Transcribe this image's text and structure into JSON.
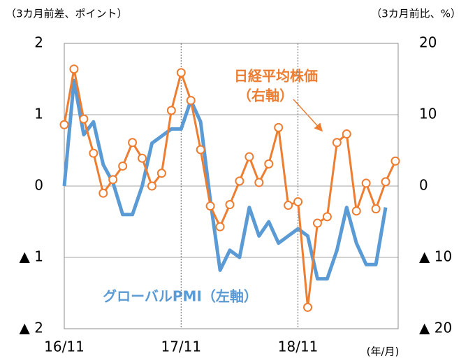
{
  "chart_data": {
    "type": "line",
    "y_label": "（3カ月前差、ポイント）",
    "y2_label": "（3カ月前比、%）",
    "x_label": "(年/月)",
    "annotations": [
      "日経平均株価",
      "（右軸）",
      "グローバルPMI（左軸）"
    ],
    "categories": [
      "16/11",
      null,
      null,
      null,
      null,
      null,
      null,
      null,
      null,
      null,
      null,
      null,
      "17/11",
      null,
      null,
      null,
      null,
      null,
      null,
      null,
      null,
      null,
      null,
      null,
      "18/11",
      null,
      null,
      null,
      null,
      null,
      null,
      null,
      null,
      null,
      null
    ],
    "ylim": [
      -2,
      2
    ],
    "yticks": [
      2,
      1,
      0,
      {
        "value": -1,
        "label": "▲ 1"
      },
      {
        "value": -2,
        "label": "▲ 2"
      }
    ],
    "y2lim": [
      -20,
      20
    ],
    "y2ticks": [
      20,
      10,
      0,
      {
        "value": -10,
        "label": "▲ 10"
      },
      {
        "value": -20,
        "label": "▲ 20"
      }
    ],
    "grid": true,
    "series": [
      {
        "name": "グローバルPMI",
        "color": "#5b9bd5",
        "axis": "y",
        "values": [
          0.0,
          1.48,
          0.72,
          0.9,
          0.3,
          0.05,
          -0.4,
          -0.4,
          0.0,
          0.6,
          0.7,
          0.8,
          0.8,
          1.2,
          0.9,
          -0.2,
          -1.18,
          -0.9,
          -1.0,
          -0.3,
          -0.7,
          -0.5,
          -0.8,
          -0.7,
          -0.6,
          -0.7,
          -1.3,
          -1.3,
          -0.9,
          -0.3,
          -0.8,
          -1.1,
          -1.1,
          -0.3,
          null
        ]
      },
      {
        "name": "日経平均株価",
        "color": "#ed7d31",
        "axis": "y2",
        "values": [
          8.6,
          16.4,
          9.4,
          4.6,
          -1.0,
          0.9,
          2.8,
          6.1,
          3.9,
          0.0,
          1.8,
          10.6,
          15.9,
          12.0,
          5.1,
          -2.8,
          -5.7,
          -2.6,
          0.7,
          4.1,
          0.5,
          3.1,
          8.2,
          -2.7,
          -2.2,
          -17.0,
          -5.2,
          -4.3,
          6.1,
          7.3,
          -3.5,
          0.4,
          -3.2,
          0.6,
          3.5
        ]
      }
    ]
  }
}
